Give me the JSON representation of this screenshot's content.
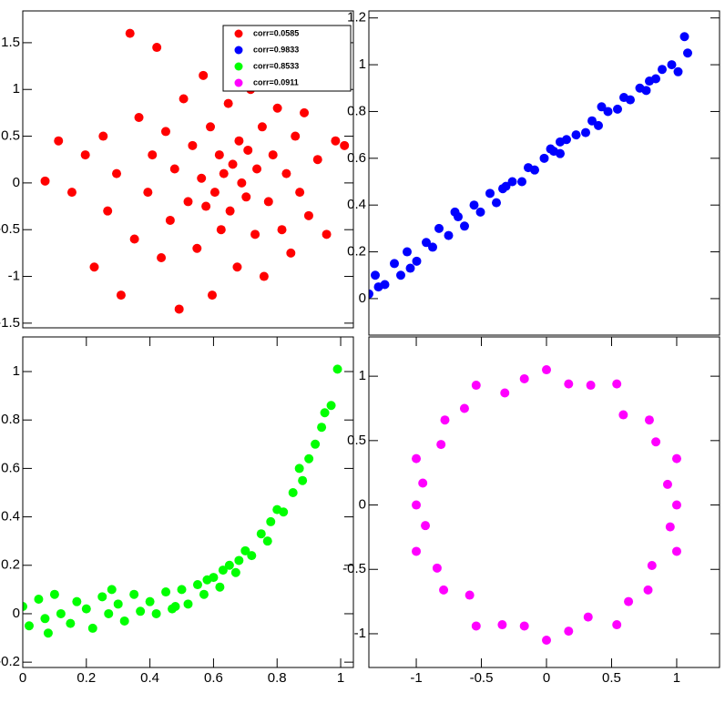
{
  "chart_data": [
    {
      "type": "scatter",
      "xlim": [
        -1.9,
        1.8
      ],
      "ylim": [
        -1.55,
        1.84
      ],
      "yticks": [
        -1.5,
        -1,
        -0.5,
        0,
        0.5,
        1,
        1.5
      ],
      "series": [
        {
          "name": "corr=0.0585",
          "color": "#ff0000",
          "x": [
            -1.65,
            -1.5,
            -1.35,
            -1.2,
            -1.1,
            -1.0,
            -0.95,
            -0.85,
            -0.8,
            -0.7,
            -0.65,
            -0.6,
            -0.5,
            -0.45,
            -0.4,
            -0.35,
            -0.3,
            -0.25,
            -0.2,
            -0.15,
            -0.1,
            -0.05,
            0.0,
            0.05,
            0.1,
            0.12,
            0.15,
            0.2,
            0.22,
            0.25,
            0.3,
            0.32,
            0.35,
            0.4,
            0.42,
            0.45,
            0.5,
            0.52,
            0.55,
            0.6,
            0.62,
            0.65,
            0.7,
            0.72,
            0.78,
            0.8,
            0.85,
            0.9,
            0.95,
            1.0,
            1.05,
            1.1,
            1.15,
            1.2,
            1.25,
            1.3,
            1.4,
            1.5,
            1.6,
            1.7
          ],
          "values": [
            0.02,
            0.45,
            -0.1,
            0.3,
            -0.9,
            0.5,
            -0.3,
            0.1,
            -1.2,
            1.6,
            -0.6,
            0.7,
            -0.1,
            0.3,
            1.45,
            -0.8,
            0.55,
            -0.4,
            0.15,
            -1.35,
            0.9,
            -0.2,
            0.4,
            -0.7,
            0.05,
            1.15,
            -0.25,
            0.6,
            -1.2,
            -0.1,
            0.3,
            -0.5,
            0.1,
            0.85,
            -0.3,
            0.2,
            -0.9,
            0.45,
            0.0,
            -0.15,
            0.35,
            1.0,
            -0.55,
            0.15,
            0.6,
            -1.0,
            -0.2,
            0.3,
            0.8,
            -0.5,
            0.1,
            -0.75,
            0.5,
            -0.1,
            0.75,
            -0.35,
            0.25,
            -0.55,
            0.45,
            0.4
          ]
        }
      ]
    },
    {
      "type": "scatter",
      "xlim": [
        0,
        1.1
      ],
      "ylim": [
        -0.156,
        1.23
      ],
      "yticks": [
        0,
        0.2,
        0.4,
        0.6,
        0.8,
        1,
        1.2
      ],
      "series": [
        {
          "name": "corr=0.9833",
          "color": "#0000ff",
          "x": [
            0,
            0.02,
            0.05,
            0.08,
            0.1,
            0.12,
            0.15,
            0.18,
            0.2,
            0.22,
            0.25,
            0.28,
            0.3,
            0.33,
            0.35,
            0.38,
            0.4,
            0.42,
            0.45,
            0.48,
            0.5,
            0.52,
            0.55,
            0.58,
            0.6,
            0.62,
            0.65,
            0.68,
            0.7,
            0.72,
            0.75,
            0.78,
            0.8,
            0.82,
            0.85,
            0.88,
            0.9,
            0.92,
            0.95,
            0.97,
            1.0,
            0.03,
            0.13,
            0.27,
            0.43,
            0.57,
            0.73,
            0.87,
            0.99,
            0.6
          ],
          "values": [
            0.02,
            0.1,
            0.06,
            0.15,
            0.1,
            0.2,
            0.16,
            0.24,
            0.22,
            0.3,
            0.27,
            0.35,
            0.31,
            0.4,
            0.37,
            0.45,
            0.41,
            0.47,
            0.5,
            0.5,
            0.56,
            0.55,
            0.6,
            0.63,
            0.62,
            0.68,
            0.7,
            0.71,
            0.76,
            0.74,
            0.8,
            0.81,
            0.86,
            0.85,
            0.9,
            0.93,
            0.94,
            0.98,
            1.0,
            0.97,
            1.05,
            0.05,
            0.13,
            0.37,
            0.48,
            0.64,
            0.82,
            0.89,
            1.12,
            0.67
          ]
        }
      ]
    },
    {
      "type": "scatter",
      "xlim": [
        0,
        1.04
      ],
      "ylim": [
        -0.222,
        1.143
      ],
      "xticks": [
        0,
        0.2,
        0.4,
        0.6,
        0.8,
        1
      ],
      "yticks": [
        -0.2,
        0,
        0.2,
        0.4,
        0.6,
        0.8,
        1
      ],
      "series": [
        {
          "name": "corr=0.8533",
          "color": "#00ff00",
          "x": [
            0,
            0.02,
            0.05,
            0.07,
            0.1,
            0.12,
            0.15,
            0.17,
            0.2,
            0.22,
            0.25,
            0.27,
            0.3,
            0.32,
            0.35,
            0.37,
            0.4,
            0.42,
            0.45,
            0.47,
            0.5,
            0.52,
            0.55,
            0.57,
            0.6,
            0.62,
            0.65,
            0.67,
            0.7,
            0.72,
            0.75,
            0.77,
            0.8,
            0.82,
            0.85,
            0.87,
            0.9,
            0.92,
            0.95,
            0.97,
            0.99,
            0.08,
            0.28,
            0.48,
            0.58,
            0.68,
            0.78,
            0.88,
            0.94,
            0.63
          ],
          "values": [
            0.03,
            -0.05,
            0.06,
            -0.02,
            0.08,
            0.0,
            -0.04,
            0.05,
            0.02,
            -0.06,
            0.07,
            0.0,
            0.04,
            -0.03,
            0.08,
            0.01,
            0.05,
            0.0,
            0.09,
            0.02,
            0.1,
            0.04,
            0.12,
            0.08,
            0.15,
            0.11,
            0.2,
            0.17,
            0.26,
            0.24,
            0.33,
            0.3,
            0.43,
            0.42,
            0.5,
            0.6,
            0.64,
            0.7,
            0.83,
            0.86,
            1.01,
            -0.08,
            0.1,
            0.03,
            0.14,
            0.22,
            0.38,
            0.55,
            0.77,
            0.18
          ]
        }
      ]
    },
    {
      "type": "scatter",
      "xlim": [
        -1.364,
        1.329
      ],
      "ylim": [
        -1.262,
        1.305
      ],
      "xticks": [
        -1,
        -0.5,
        0,
        0.5,
        1
      ],
      "yticks": [
        -1,
        -0.5,
        0,
        0.5,
        1
      ],
      "series": [
        {
          "name": "corr=0.0911",
          "color": "#ff00ff",
          "x": [
            1.0,
            0.93,
            1.0,
            0.84,
            0.79,
            0.59,
            0.54,
            0.34,
            0.17,
            0,
            -0.17,
            -0.32,
            -0.54,
            -0.63,
            -0.78,
            -0.81,
            -1.0,
            -0.95,
            -1.0,
            -0.93,
            -1.0,
            -0.84,
            -0.79,
            -0.59,
            -0.54,
            -0.34,
            -0.17,
            0,
            0.17,
            0.32,
            0.54,
            0.63,
            0.78,
            0.81,
            1.0,
            0.95
          ],
          "values": [
            0,
            0.16,
            0.36,
            0.49,
            0.66,
            0.7,
            0.94,
            0.93,
            0.94,
            1.05,
            0.98,
            0.87,
            0.93,
            0.75,
            0.66,
            0.47,
            0.36,
            0.17,
            0,
            -0.16,
            -0.36,
            -0.49,
            -0.66,
            -0.7,
            -0.94,
            -0.93,
            -0.94,
            -1.05,
            -0.98,
            -0.87,
            -0.93,
            -0.75,
            -0.66,
            -0.47,
            -0.36,
            -0.17
          ]
        }
      ]
    }
  ]
}
